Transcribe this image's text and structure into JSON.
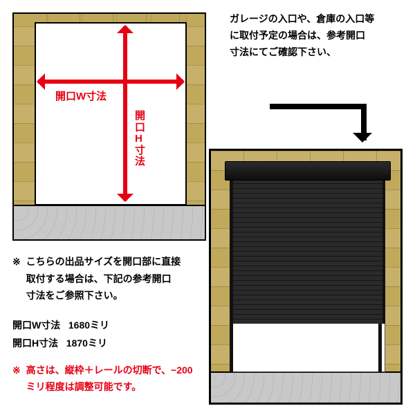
{
  "colors": {
    "accent_red": "#e60012",
    "brick_a": "#c7b16a",
    "brick_b": "#c0a95a",
    "floor": "#c8c8c8",
    "shutter_dark": "#141414",
    "shutter_light": "#2a2a2a",
    "border": "#000000",
    "bg": "#ffffff"
  },
  "left_diagram": {
    "w_label": "開口W寸法",
    "h_label": "開口H寸法"
  },
  "right_note": {
    "line1": "ガレージの入口や、倉庫の入口等",
    "line2": "に取付予定の場合は、参考開口",
    "line3": "寸法にてご確認下さい、"
  },
  "left_text": {
    "note1_line1": "こちらの出品サイズを開口部に直接",
    "note1_line2": "取付する場合は、下記の参考開口",
    "note1_line3": "寸法をご参照下さい。",
    "dim_w_label": "開口W寸法",
    "dim_w_value": "1680ミリ",
    "dim_h_label": "開口H寸法",
    "dim_h_value": "1870ミリ",
    "note2_line1": "高さは、縦枠＋レールの切断で、−200",
    "note2_line2": "ミリ程度は調整可能です。"
  }
}
